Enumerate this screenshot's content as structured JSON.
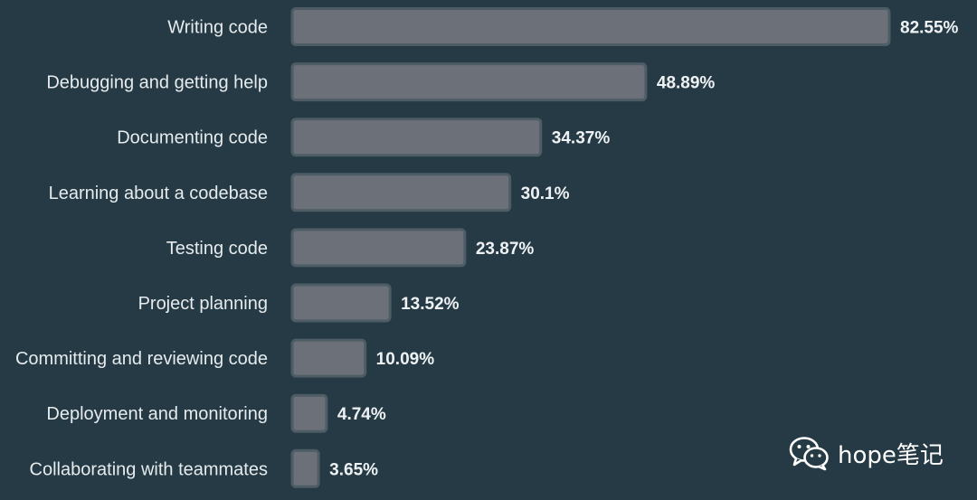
{
  "chart_data": {
    "type": "bar",
    "orientation": "horizontal",
    "title": "",
    "xlabel": "",
    "ylabel": "",
    "xlim": [
      0,
      100
    ],
    "grid": false,
    "categories": [
      "Writing code",
      "Debugging and getting help",
      "Documenting code",
      "Learning about a codebase",
      "Testing code",
      "Project planning",
      "Committing and reviewing code",
      "Deployment and monitoring",
      "Collaborating with teammates"
    ],
    "values": [
      82.55,
      48.89,
      34.37,
      30.1,
      23.87,
      13.52,
      10.09,
      4.74,
      3.65
    ],
    "value_labels": [
      "82.55%",
      "48.89%",
      "34.37%",
      "30.1%",
      "23.87%",
      "13.52%",
      "10.09%",
      "4.74%",
      "3.65%"
    ]
  },
  "watermark": {
    "text": "hope笔记",
    "icon": "wechat-icon"
  },
  "colors": {
    "background": "#253a44",
    "bar_fill": "#6b7079",
    "bar_border": "#4d5c65",
    "text": "#e6ebee"
  }
}
